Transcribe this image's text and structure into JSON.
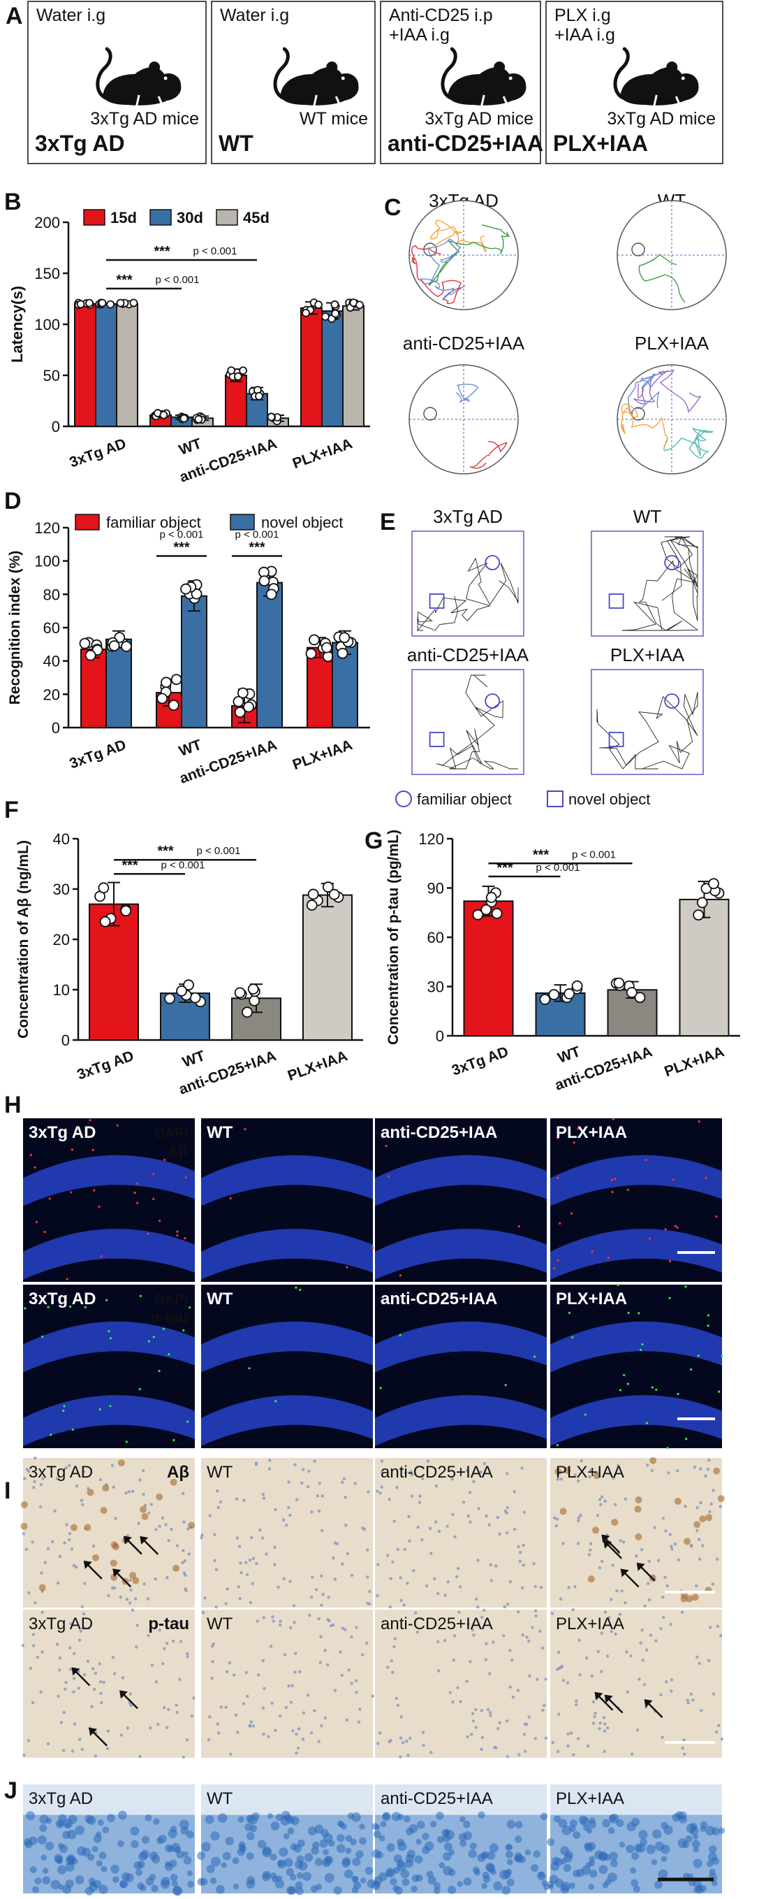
{
  "panels": {
    "A": "A",
    "B": "B",
    "C": "C",
    "D": "D",
    "E": "E",
    "F": "F",
    "G": "G",
    "H": "H",
    "I": "I",
    "J": "J"
  },
  "groups": [
    "3xTg AD",
    "WT",
    "anti-CD25+IAA",
    "PLX+IAA"
  ],
  "panelA": {
    "boxes": [
      {
        "treatment1": "Water i.g",
        "treatment2": "",
        "mouse": "3xTg AD mice",
        "group": "3xTg AD"
      },
      {
        "treatment1": "Water i.g",
        "treatment2": "",
        "mouse": "WT mice",
        "group": "WT"
      },
      {
        "treatment1": "Anti-CD25 i.p",
        "treatment2": "+IAA i.g",
        "mouse": "3xTg AD mice",
        "group": "anti-CD25+IAA"
      },
      {
        "treatment1": "PLX i.g",
        "treatment2": "+IAA i.g",
        "mouse": "3xTg AD mice",
        "group": "PLX+IAA"
      }
    ]
  },
  "colors": {
    "red": "#e3141a",
    "blue": "#3a6fa5",
    "gray": "#b9b5ad",
    "darkgray": "#8b8781",
    "lightgray": "#cfcbc4"
  },
  "chart_data": [
    {
      "id": "B",
      "type": "bar",
      "ylabel": "Latency(s)",
      "ylim": [
        0,
        200
      ],
      "yticks": [
        0,
        50,
        100,
        150,
        200
      ],
      "categories": [
        "3xTg AD",
        "WT",
        "anti-CD25+IAA",
        "PLX+IAA"
      ],
      "series": [
        {
          "name": "15d",
          "values": [
            120,
            11,
            50,
            116
          ],
          "errors": [
            0,
            2,
            6,
            6
          ]
        },
        {
          "name": "30d",
          "values": [
            120,
            9,
            32,
            113
          ],
          "errors": [
            0,
            2,
            6,
            8
          ]
        },
        {
          "name": "45d",
          "values": [
            120,
            8,
            8,
            118
          ],
          "errors": [
            0,
            2,
            3,
            4
          ]
        }
      ],
      "annotations": [
        {
          "from": 0,
          "to": 2,
          "level": 163,
          "stars": "***",
          "p": "p < 0.001"
        },
        {
          "from": 0,
          "to": 1,
          "level": 135,
          "stars": "***",
          "p": "p < 0.001"
        }
      ]
    },
    {
      "id": "D",
      "type": "bar",
      "ylabel": "Recognition index (%)",
      "ylim": [
        0,
        120
      ],
      "yticks": [
        0,
        20,
        40,
        60,
        80,
        100,
        120
      ],
      "categories": [
        "3xTg AD",
        "WT",
        "anti-CD25+IAA",
        "PLX+IAA"
      ],
      "series": [
        {
          "name": "familiar object",
          "values": [
            47,
            21,
            13,
            48
          ],
          "errors": [
            5,
            8,
            10,
            6
          ]
        },
        {
          "name": "novel object",
          "values": [
            53,
            79,
            87,
            51
          ],
          "errors": [
            5,
            9,
            8,
            7
          ]
        }
      ],
      "annotations": [
        {
          "group": 1,
          "level": 103,
          "stars": "***",
          "p": "p < 0.001"
        },
        {
          "group": 2,
          "level": 103,
          "stars": "***",
          "p": "p < 0.001"
        }
      ]
    },
    {
      "id": "F",
      "type": "bar",
      "ylabel": "Concentration of Aβ (ng/mL)",
      "ylim": [
        0,
        40
      ],
      "yticks": [
        0,
        10,
        20,
        30,
        40
      ],
      "categories": [
        "3xTg AD",
        "WT",
        "anti-CD25+IAA",
        "PLX+IAA"
      ],
      "values": [
        27,
        9.3,
        8.3,
        28.8
      ],
      "errors": [
        4.3,
        1.8,
        2.8,
        2.3
      ],
      "annotations": [
        {
          "from": 0,
          "to": 2,
          "level": 35.8,
          "stars": "***",
          "p": "p < 0.001"
        },
        {
          "from": 0,
          "to": 1,
          "level": 33.0,
          "stars": "***",
          "p": "p < 0.001"
        }
      ]
    },
    {
      "id": "G",
      "type": "bar",
      "ylabel": "Concentration of p-tau (pg/mL)",
      "ylim": [
        0,
        120
      ],
      "yticks": [
        0,
        30,
        60,
        90,
        120
      ],
      "categories": [
        "3xTg AD",
        "WT",
        "anti-CD25+IAA",
        "PLX+IAA"
      ],
      "values": [
        82,
        26,
        28,
        83
      ],
      "errors": [
        9,
        5,
        5,
        11
      ],
      "annotations": [
        {
          "from": 0,
          "to": 2,
          "level": 105,
          "stars": "***",
          "p": "p < 0.001"
        },
        {
          "from": 0,
          "to": 1,
          "level": 97,
          "stars": "***",
          "p": "p < 0.001"
        }
      ]
    }
  ],
  "panelC": {
    "titles": [
      "3xTg AD",
      "WT",
      "anti-CD25+IAA",
      "PLX+IAA"
    ]
  },
  "panelE": {
    "titles": [
      "3xTg AD",
      "WT",
      "anti-CD25+IAA",
      "PLX+IAA"
    ],
    "legend": {
      "familiar": "familiar object",
      "novel": "novel object"
    }
  },
  "panelH": {
    "row1": {
      "labels": [
        "3xTg AD",
        "WT",
        "anti-CD25+IAA",
        "PLX+IAA"
      ],
      "stain1": "DAPI",
      "stain2": "Aβ"
    },
    "row2": {
      "labels": [
        "3xTg AD",
        "WT",
        "anti-CD25+IAA",
        "PLX+IAA"
      ],
      "stain1": "DAPI",
      "stain2": "p-tau"
    }
  },
  "panelI": {
    "row1": {
      "labels": [
        "3xTg AD",
        "WT",
        "anti-CD25+IAA",
        "PLX+IAA"
      ],
      "marker": "Aβ"
    },
    "row2": {
      "labels": [
        "3xTg AD",
        "WT",
        "anti-CD25+IAA",
        "PLX+IAA"
      ],
      "marker": "p-tau"
    }
  },
  "panelJ": {
    "labels": [
      "3xTg AD",
      "WT",
      "anti-CD25+IAA",
      "PLX+IAA"
    ]
  }
}
